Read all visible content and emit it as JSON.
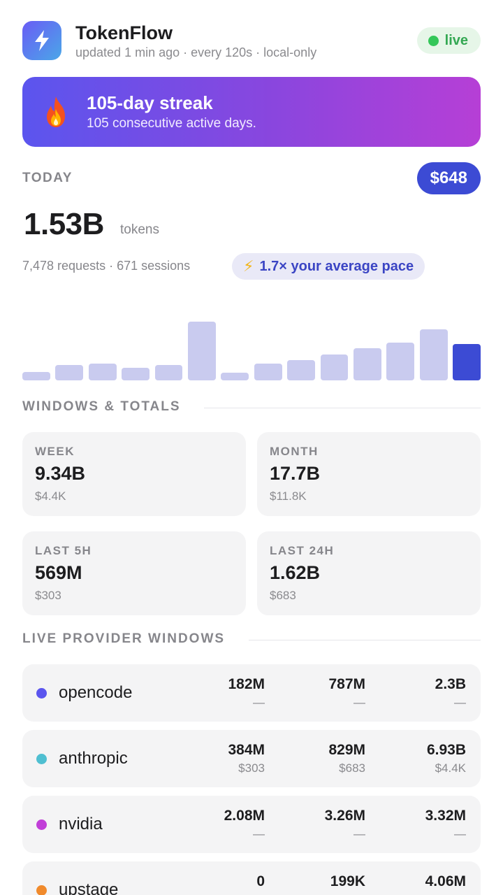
{
  "app": {
    "title": "TokenFlow",
    "subtitle": "updated 1 min ago · every 120s · local-only",
    "icon": "lightning-bolt-icon",
    "status": "live",
    "status_color": "#34c759"
  },
  "streak": {
    "icon": "fire-icon",
    "title": "105-day streak",
    "subtitle": "105 consecutive active days."
  },
  "today": {
    "label": "TODAY",
    "cost": "$648",
    "tokens": "1.53B",
    "tokens_unit": "tokens",
    "requests_line": "7,478 requests · 671 sessions",
    "pace_icon": "⚡",
    "pace_text": "1.7× your average pace",
    "accent_color": "#3c4bd4"
  },
  "chart_data": {
    "type": "bar",
    "categories": [
      "",
      "",
      "",
      "",
      "",
      "",
      "",
      "",
      "",
      "",
      "",
      "",
      "",
      ""
    ],
    "values": [
      12,
      22,
      24,
      18,
      22,
      84,
      11,
      24,
      29,
      37,
      46,
      54,
      73,
      52
    ],
    "active_index": 13,
    "ylim": [
      0,
      84
    ],
    "grid": false
  },
  "windows": {
    "section_label": "WINDOWS & TOTALS",
    "cards": [
      {
        "label": "WEEK",
        "value": "9.34B",
        "cost": "$4.4K"
      },
      {
        "label": "MONTH",
        "value": "17.7B",
        "cost": "$11.8K"
      },
      {
        "label": "LAST 5H",
        "value": "569M",
        "cost": "$303"
      },
      {
        "label": "LAST 24H",
        "value": "1.62B",
        "cost": "$683"
      }
    ]
  },
  "providers": {
    "section_label": "LIVE PROVIDER WINDOWS",
    "items": [
      {
        "name": "opencode",
        "color": "#5b55ee",
        "cols": [
          {
            "value": "182M",
            "cost": "—"
          },
          {
            "value": "787M",
            "cost": "—"
          },
          {
            "value": "2.3B",
            "cost": "—"
          }
        ]
      },
      {
        "name": "anthropic",
        "color": "#4fbfd1",
        "cols": [
          {
            "value": "384M",
            "cost": "$303"
          },
          {
            "value": "829M",
            "cost": "$683"
          },
          {
            "value": "6.93B",
            "cost": "$4.4K"
          }
        ]
      },
      {
        "name": "nvidia",
        "color": "#c13fd8",
        "cols": [
          {
            "value": "2.08M",
            "cost": "—"
          },
          {
            "value": "3.26M",
            "cost": "—"
          },
          {
            "value": "3.32M",
            "cost": "—"
          }
        ]
      },
      {
        "name": "upstage",
        "color": "#f08a2c",
        "cols": [
          {
            "value": "0",
            "cost": ""
          },
          {
            "value": "199K",
            "cost": ""
          },
          {
            "value": "4.06M",
            "cost": ""
          }
        ]
      }
    ]
  }
}
